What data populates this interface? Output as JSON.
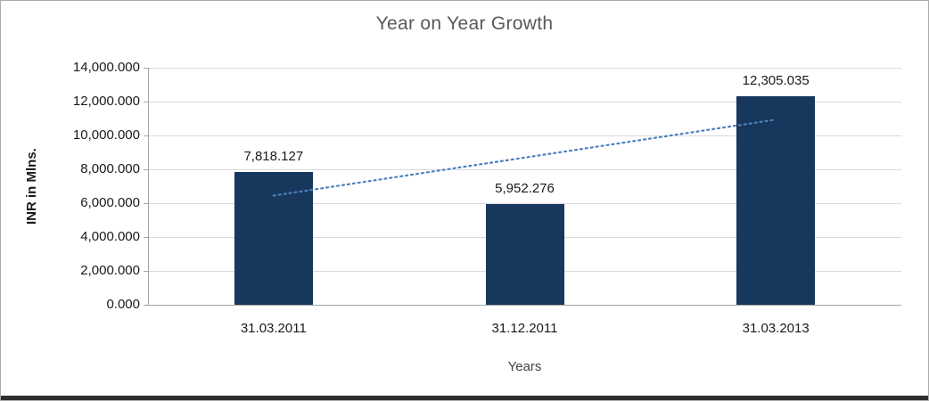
{
  "chart_data": {
    "type": "bar",
    "title": "Year on Year Growth",
    "xlabel": "Years",
    "ylabel": "INR in Mlns.",
    "categories": [
      "31.03.2011",
      "31.12.2011",
      "31.03.2013"
    ],
    "values": [
      7818.127,
      5952.276,
      12305.035
    ],
    "data_labels": [
      "7,818.127",
      "5,952.276",
      "12,305.035"
    ],
    "y_ticks": [
      "0.000",
      "2,000.000",
      "4,000.000",
      "6,000.000",
      "8,000.000",
      "10,000.000",
      "12,000.000",
      "14,000.000"
    ],
    "ylim": [
      0,
      14000
    ],
    "grid": true,
    "legend": "none",
    "bar_color": "#17375D",
    "trendline": {
      "style": "dotted",
      "color": "#4E80BC"
    }
  }
}
